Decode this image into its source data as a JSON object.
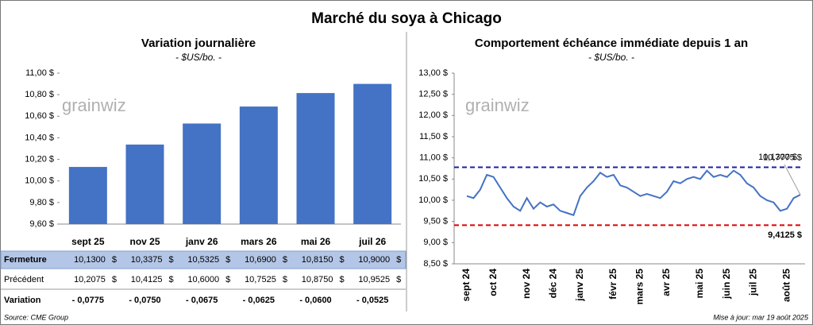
{
  "title": "Marché du soya à Chicago",
  "chart_data": [
    {
      "type": "bar",
      "title": "Variation journalière",
      "subtitle": "- $US/bo. -",
      "watermark": "grainwiz",
      "color": "#4472c4",
      "categories": [
        "sept 25",
        "nov 25",
        "janv 26",
        "mars 26",
        "mai 26",
        "juil 26"
      ],
      "values": [
        10.13,
        10.3375,
        10.5325,
        10.69,
        10.815,
        10.9
      ],
      "ylim": [
        9.6,
        11.0
      ],
      "yticks": [
        {
          "value": 9.6,
          "label": "9,60 $"
        },
        {
          "value": 9.8,
          "label": "9,80 $"
        },
        {
          "value": 10.0,
          "label": "10,00 $"
        },
        {
          "value": 10.2,
          "label": "10,20 $"
        },
        {
          "value": 10.4,
          "label": "10,40 $"
        },
        {
          "value": 10.6,
          "label": "10,60 $"
        },
        {
          "value": 10.8,
          "label": "10,80 $"
        },
        {
          "value": 11.0,
          "label": "11,00 $"
        }
      ]
    },
    {
      "type": "line",
      "title": "Comportement échéance immédiate depuis 1 an",
      "subtitle": "- $US/bo. -",
      "watermark": "grainwiz",
      "color": "#4472c4",
      "categories": [
        "sept 24",
        null,
        null,
        null,
        "oct 24",
        null,
        null,
        null,
        null,
        "nov 24",
        null,
        null,
        null,
        "déc 24",
        null,
        null,
        null,
        "janv 25",
        null,
        null,
        null,
        null,
        "févr 25",
        null,
        null,
        null,
        "mars 25",
        null,
        null,
        null,
        "avr 25",
        null,
        null,
        null,
        null,
        "mai 25",
        null,
        null,
        null,
        "juin 25",
        null,
        null,
        null,
        "juil 25",
        null,
        null,
        null,
        null,
        "août 25",
        null,
        null
      ],
      "values": [
        10.1,
        10.05,
        10.25,
        10.6,
        10.55,
        10.3,
        10.05,
        9.85,
        9.75,
        10.05,
        9.8,
        9.95,
        9.85,
        9.9,
        9.75,
        9.7,
        9.65,
        10.1,
        10.3,
        10.45,
        10.65,
        10.55,
        10.6,
        10.35,
        10.3,
        10.2,
        10.1,
        10.15,
        10.1,
        10.05,
        10.2,
        10.45,
        10.4,
        10.5,
        10.55,
        10.5,
        10.7,
        10.55,
        10.6,
        10.55,
        10.7,
        10.6,
        10.4,
        10.3,
        10.1,
        10.0,
        9.95,
        9.75,
        9.8,
        10.05,
        10.13
      ],
      "ylim": [
        8.5,
        13.0
      ],
      "yticks": [
        {
          "value": 8.5,
          "label": "8,50 $"
        },
        {
          "value": 9.0,
          "label": "9,00 $"
        },
        {
          "value": 9.5,
          "label": "9,50 $"
        },
        {
          "value": 10.0,
          "label": "10,00 $"
        },
        {
          "value": 10.5,
          "label": "10,50 $"
        },
        {
          "value": 11.0,
          "label": "11,00 $"
        },
        {
          "value": 11.5,
          "label": "11,50 $"
        },
        {
          "value": 12.0,
          "label": "12,00 $"
        },
        {
          "value": 12.5,
          "label": "12,50 $"
        },
        {
          "value": 13.0,
          "label": "13,00 $"
        }
      ],
      "reference_lines": [
        {
          "value": 10.7775,
          "label": "10,7775 $",
          "color": "#1f1fa0"
        },
        {
          "value": 9.4125,
          "label": "9,4125 $",
          "color": "#e00000"
        }
      ],
      "annotations": [
        {
          "value": 10.13,
          "label": "10,1300 $"
        }
      ]
    }
  ],
  "table": {
    "currency": "$",
    "rows": [
      {
        "label": "Fermeture",
        "cells": [
          "10,1300",
          "10,3375",
          "10,5325",
          "10,6900",
          "10,8150",
          "10,9000"
        ]
      },
      {
        "label": "Précédent",
        "cells": [
          "10,2075",
          "10,4125",
          "10,6000",
          "10,7525",
          "10,8750",
          "10,9525"
        ]
      },
      {
        "label": "Variation",
        "cells": [
          "- 0,0775",
          "- 0,0750",
          "- 0,0675",
          "- 0,0625",
          "- 0,0600",
          "- 0,0525"
        ]
      }
    ]
  },
  "source": "Source: CME Group",
  "updated": "Mise à jour: mar 19 août 2025"
}
